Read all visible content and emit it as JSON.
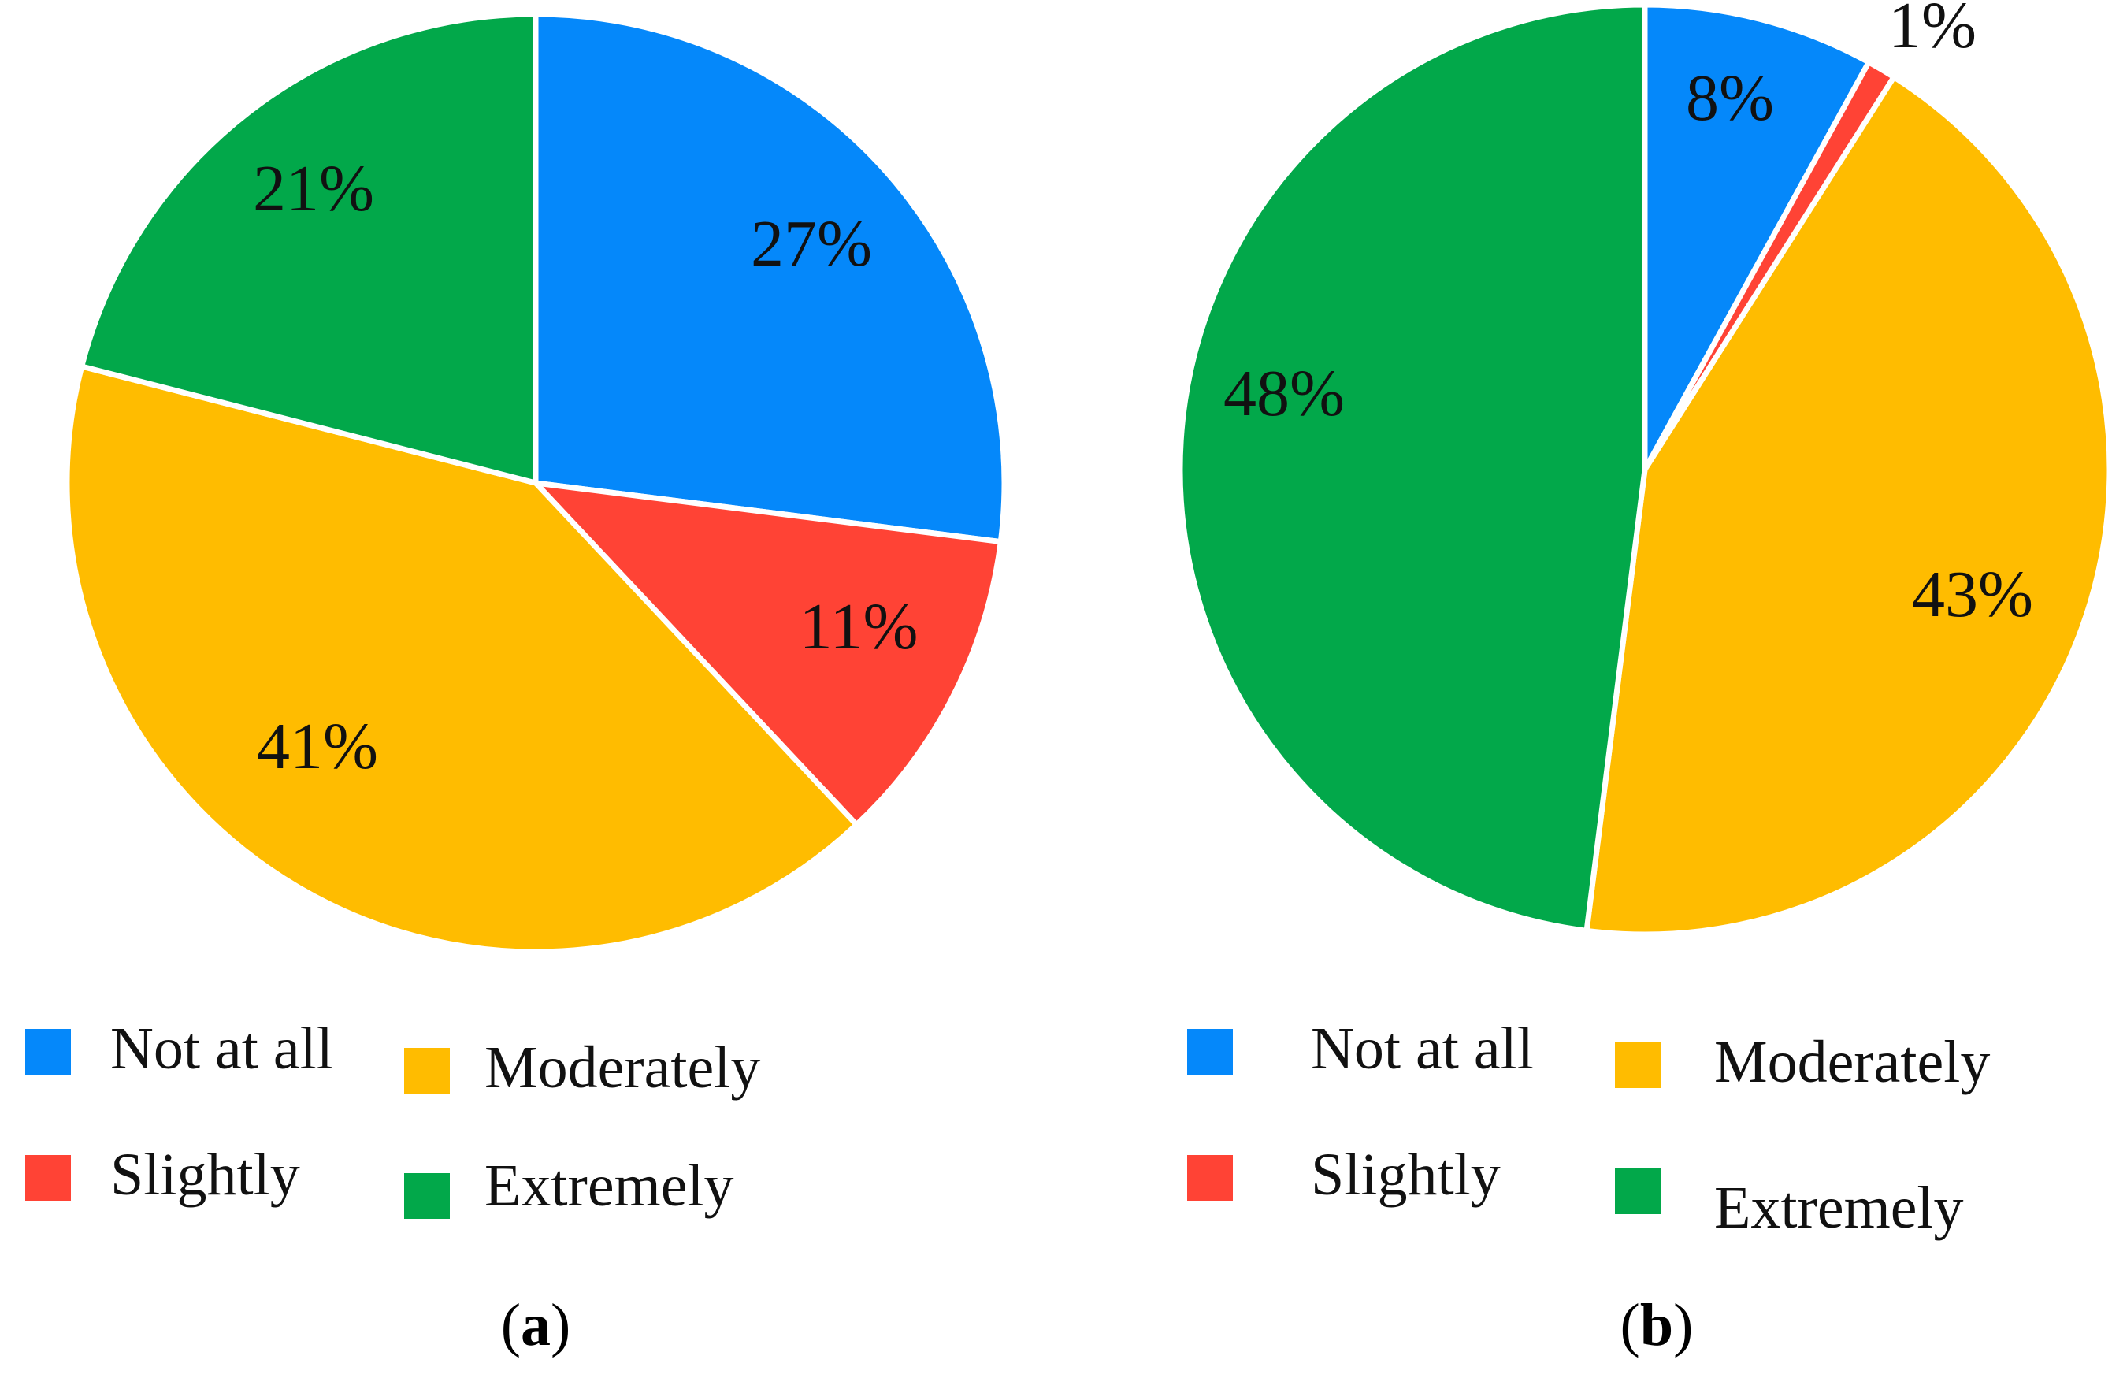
{
  "colors": {
    "not_at_all": "#0588FA",
    "slightly": "#FF4335",
    "moderately": "#FFBC00",
    "extremely": "#02A84A",
    "separator": "#ffffff"
  },
  "chart_data": [
    {
      "type": "pie",
      "panel": "a",
      "caption": {
        "open": "(",
        "letter": "a",
        "close": ")"
      },
      "categories": [
        "Not at all",
        "Slightly",
        "Moderately",
        "Extremely"
      ],
      "values": [
        27,
        11,
        41,
        21
      ],
      "labels": [
        "27%",
        "11%",
        "41%",
        "21%"
      ],
      "colors": [
        "#0588FA",
        "#FF4335",
        "#FFBC00",
        "#02A84A"
      ],
      "start": "12 o'clock",
      "direction": "clockwise",
      "legend": {
        "placement": "bottom",
        "items": [
          {
            "label": "Not at all",
            "key": "not_at_all"
          },
          {
            "label": "Slightly",
            "key": "slightly"
          },
          {
            "label": "Moderately",
            "key": "moderately"
          },
          {
            "label": "Extremely",
            "key": "extremely"
          }
        ]
      }
    },
    {
      "type": "pie",
      "panel": "b",
      "caption": {
        "open": "(",
        "letter": "b",
        "close": ")"
      },
      "categories": [
        "Not at all",
        "Slightly",
        "Moderately",
        "Extremely"
      ],
      "values": [
        8,
        1,
        43,
        48
      ],
      "labels": [
        "8%",
        "1%",
        "43%",
        "48%"
      ],
      "colors": [
        "#0588FA",
        "#FF4335",
        "#FFBC00",
        "#02A84A"
      ],
      "start": "12 o'clock",
      "direction": "clockwise",
      "legend": {
        "placement": "bottom",
        "items": [
          {
            "label": "Not at all",
            "key": "not_at_all"
          },
          {
            "label": "Slightly",
            "key": "slightly"
          },
          {
            "label": "Moderately",
            "key": "moderately"
          },
          {
            "label": "Extremely",
            "key": "extremely"
          }
        ]
      }
    }
  ]
}
